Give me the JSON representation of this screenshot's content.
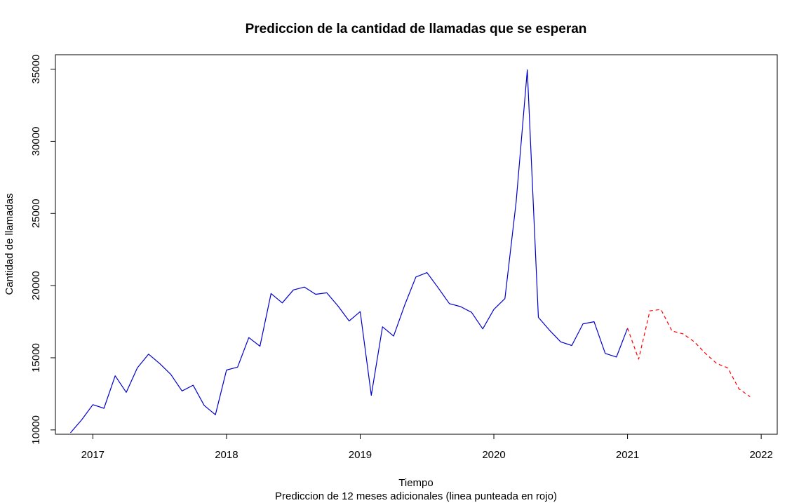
{
  "chart_data": {
    "type": "line",
    "title": "Prediccion de la cantidad de llamadas que se esperan",
    "xlabel": "Tiempo",
    "subtitle": "Prediccion de 12 meses adicionales (linea punteada en rojo)",
    "ylabel": "Cantidad de llamadas",
    "xlim": [
      2016.72,
      2022.12
    ],
    "ylim": [
      9700,
      36000
    ],
    "xticks": [
      2017,
      2018,
      2019,
      2020,
      2021,
      2022
    ],
    "xtick_labels": [
      "2017",
      "2018",
      "2019",
      "2020",
      "2021",
      "2022"
    ],
    "yticks": [
      10000,
      15000,
      20000,
      25000,
      30000,
      35000
    ],
    "ytick_labels": [
      "10000",
      "15000",
      "20000",
      "25000",
      "30000",
      "35000"
    ],
    "grid": false,
    "series": [
      {
        "color": "#0000cc",
        "style": "solid",
        "x": [
          2016.833,
          2016.917,
          2017.0,
          2017.083,
          2017.167,
          2017.25,
          2017.333,
          2017.417,
          2017.5,
          2017.583,
          2017.667,
          2017.75,
          2017.833,
          2017.917,
          2018.0,
          2018.083,
          2018.167,
          2018.25,
          2018.333,
          2018.417,
          2018.5,
          2018.583,
          2018.667,
          2018.75,
          2018.833,
          2018.917,
          2019.0,
          2019.083,
          2019.167,
          2019.25,
          2019.333,
          2019.417,
          2019.5,
          2019.583,
          2019.667,
          2019.75,
          2019.833,
          2019.917,
          2020.0,
          2020.083,
          2020.167,
          2020.25,
          2020.333,
          2020.417,
          2020.5,
          2020.583,
          2020.667,
          2020.75,
          2020.833,
          2020.917,
          2021.0
        ],
        "y": [
          9800,
          10700,
          11750,
          11500,
          13750,
          12600,
          14300,
          15250,
          14600,
          13850,
          12700,
          13100,
          11700,
          11050,
          14150,
          14350,
          16400,
          15800,
          19450,
          18800,
          19700,
          19900,
          19400,
          19500,
          18600,
          17550,
          18200,
          12400,
          17150,
          16500,
          18650,
          20600,
          20900,
          19850,
          18750,
          18550,
          18150,
          17000,
          18350,
          19100,
          25800,
          34950,
          17800,
          16900,
          16100,
          15850,
          17350,
          17500,
          15300,
          15050,
          17050
        ]
      },
      {
        "color": "#ff0000",
        "style": "dashed",
        "x": [
          2021.0,
          2021.083,
          2021.167,
          2021.25,
          2021.333,
          2021.417,
          2021.5,
          2021.583,
          2021.667,
          2021.75,
          2021.833,
          2021.917
        ],
        "y": [
          17050,
          14900,
          18250,
          18350,
          16850,
          16650,
          16100,
          15300,
          14600,
          14300,
          12850,
          12300
        ]
      }
    ]
  }
}
